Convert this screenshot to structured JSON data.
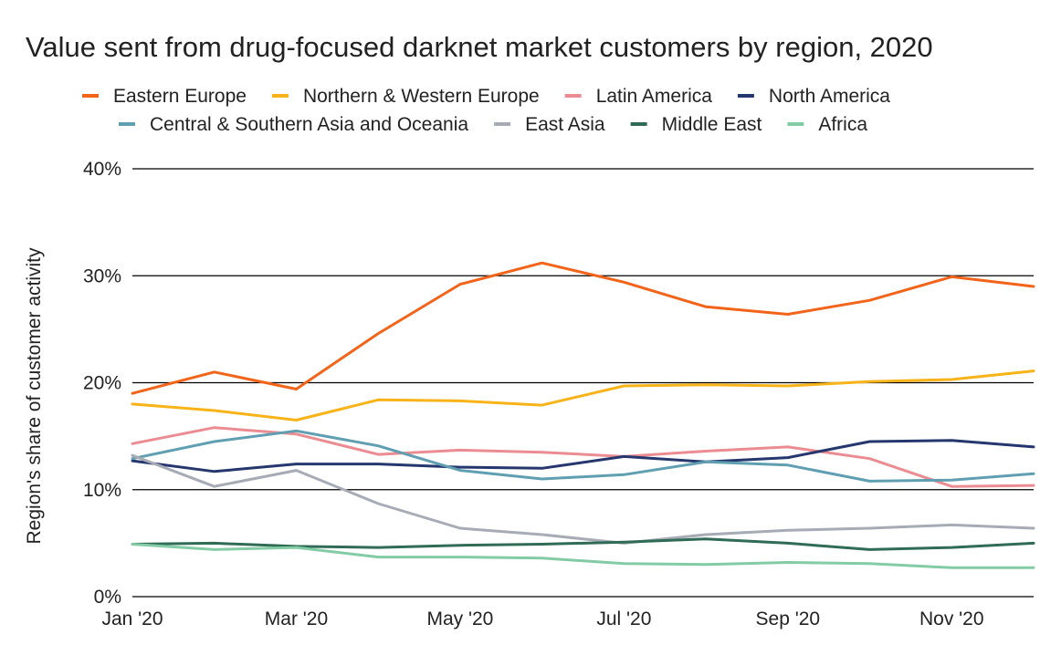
{
  "chart_data": {
    "type": "line",
    "title": "Value sent from drug-focused darknet market customers by region, 2020",
    "xlabel": "",
    "ylabel": "Region's share of customer activity",
    "x": [
      "Jan '20",
      "Feb '20",
      "Mar '20",
      "Apr '20",
      "May '20",
      "Jun '20",
      "Jul '20",
      "Aug '20",
      "Sep '20",
      "Oct '20",
      "Nov '20",
      "Dec '20"
    ],
    "x_tick_labels": [
      "Jan '20",
      "Mar '20",
      "May '20",
      "Jul '20",
      "Sep '20",
      "Nov '20"
    ],
    "y_tick_labels": [
      "0%",
      "10%",
      "20%",
      "30%",
      "40%"
    ],
    "y_ticks": [
      0,
      10,
      20,
      30,
      40
    ],
    "ylim": [
      0,
      40
    ],
    "grid": true,
    "legend_position": "top",
    "series": [
      {
        "name": "Eastern Europe",
        "color": "#f2641a",
        "values": [
          19.0,
          21.0,
          19.4,
          24.6,
          29.2,
          31.2,
          29.4,
          27.1,
          26.4,
          27.7,
          29.9,
          29.0
        ]
      },
      {
        "name": "Northern & Western Europe",
        "color": "#f7b318",
        "values": [
          18.0,
          17.4,
          16.5,
          18.4,
          18.3,
          17.9,
          19.7,
          19.8,
          19.7,
          20.1,
          20.3,
          21.1
        ]
      },
      {
        "name": "Latin America",
        "color": "#eb8c92",
        "values": [
          14.3,
          15.8,
          15.2,
          13.3,
          13.7,
          13.5,
          13.1,
          13.6,
          14.0,
          12.9,
          10.3,
          10.4
        ]
      },
      {
        "name": "North America",
        "color": "#25376d",
        "values": [
          12.7,
          11.7,
          12.4,
          12.4,
          12.1,
          12.0,
          13.1,
          12.6,
          13.0,
          14.5,
          14.6,
          14.0
        ]
      },
      {
        "name": "Central & Southern Asia and Oceania",
        "color": "#5f9fb1",
        "values": [
          12.9,
          14.5,
          15.5,
          14.1,
          11.8,
          11.0,
          11.4,
          12.6,
          12.3,
          10.8,
          10.9,
          11.5
        ]
      },
      {
        "name": "East Asia",
        "color": "#a6abb5",
        "values": [
          13.2,
          10.3,
          11.8,
          8.7,
          6.4,
          5.8,
          5.0,
          5.8,
          6.2,
          6.4,
          6.7,
          6.4
        ]
      },
      {
        "name": "Middle East",
        "color": "#2f6b55",
        "values": [
          4.9,
          5.0,
          4.7,
          4.6,
          4.8,
          4.9,
          5.1,
          5.4,
          5.0,
          4.4,
          4.6,
          5.0
        ]
      },
      {
        "name": "Africa",
        "color": "#82cba4",
        "values": [
          4.9,
          4.4,
          4.6,
          3.7,
          3.7,
          3.6,
          3.1,
          3.0,
          3.2,
          3.1,
          2.7,
          2.7
        ]
      }
    ]
  }
}
